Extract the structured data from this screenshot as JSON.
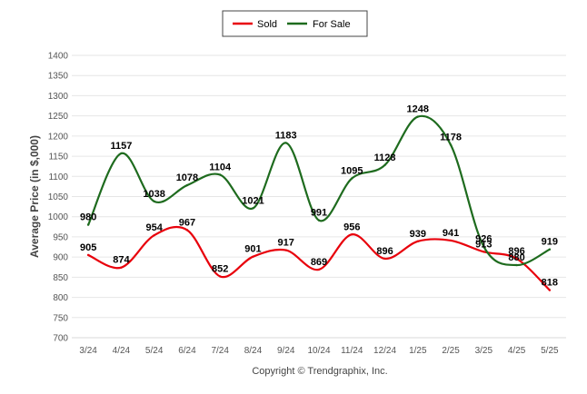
{
  "chart_data": {
    "type": "line",
    "title": "",
    "xlabel": "",
    "ylabel": "Average Price (in $,000)",
    "ylim": [
      700,
      1400
    ],
    "yticks": [
      700,
      750,
      800,
      850,
      900,
      950,
      1000,
      1050,
      1100,
      1150,
      1200,
      1250,
      1300,
      1350,
      1400
    ],
    "grid": true,
    "legend_position": "top-center",
    "categories": [
      "3/24",
      "4/24",
      "5/24",
      "6/24",
      "7/24",
      "8/24",
      "9/24",
      "10/24",
      "11/24",
      "12/24",
      "1/25",
      "2/25",
      "3/25",
      "4/25",
      "5/25"
    ],
    "series": [
      {
        "name": "Sold",
        "color": "#e8000b",
        "values": [
          905,
          874,
          954,
          967,
          852,
          901,
          917,
          869,
          956,
          896,
          939,
          941,
          913,
          896,
          818
        ]
      },
      {
        "name": "For Sale",
        "color": "#1e6b1e",
        "values": [
          980,
          1157,
          1038,
          1078,
          1104,
          1021,
          1183,
          991,
          1095,
          1128,
          1248,
          1178,
          926,
          880,
          919
        ]
      }
    ],
    "footer": "Copyright © Trendgraphix, Inc."
  }
}
